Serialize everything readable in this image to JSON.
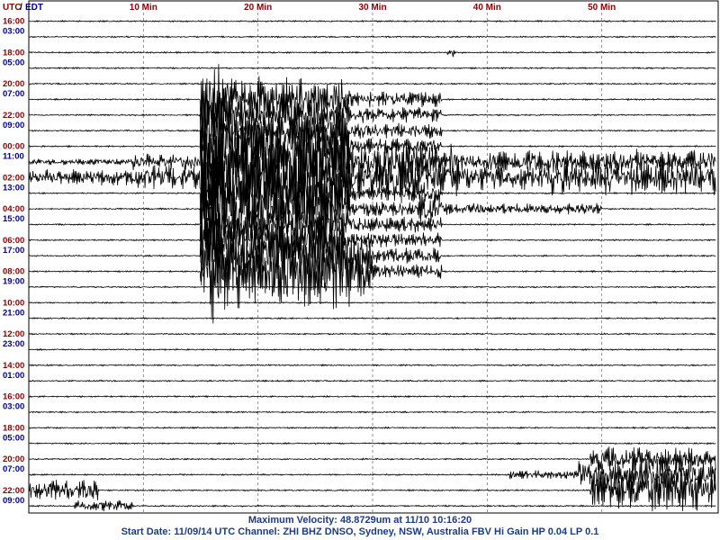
{
  "header": {
    "utc_label": "UTC",
    "separator": "/",
    "local_label": "EDT"
  },
  "colors": {
    "utc": "#8b0000",
    "local": "#00008b",
    "trace": "#000000",
    "gridline": "#777777",
    "footer_text": "#1a3a8a"
  },
  "footer": {
    "line1": "Maximum Velocity: 48.8729um at 11/10 10:16:20",
    "line2": "Start Date: 11/09/14 UTC Channel: ZHI  BHZ  DNSO, Sydney, NSW, Australia  FBV Hi Gain HP 0.04 LP 0.1"
  },
  "chart_data": {
    "type": "line",
    "title": "",
    "xlabel": "",
    "ylabel": "",
    "x_unit": "Min",
    "xlim": [
      0,
      60
    ],
    "x_ticks": [
      {
        "value": 10,
        "label": "10 Min"
      },
      {
        "value": 20,
        "label": "20 Min"
      },
      {
        "value": 30,
        "label": "30 Min"
      },
      {
        "value": 40,
        "label": "40 Min"
      },
      {
        "value": 50,
        "label": "50 Min"
      }
    ],
    "grid": true,
    "trace_lines": 32,
    "minutes_per_line": 60,
    "row_labels": [
      {
        "utc": "16:00",
        "local": "03:00"
      },
      {
        "utc": "18:00",
        "local": "05:00"
      },
      {
        "utc": "20:00",
        "local": "07:00"
      },
      {
        "utc": "22:00",
        "local": "09:00"
      },
      {
        "utc": "00:00",
        "local": "11:00"
      },
      {
        "utc": "02:00",
        "local": "13:00"
      },
      {
        "utc": "04:00",
        "local": "15:00"
      },
      {
        "utc": "06:00",
        "local": "17:00"
      },
      {
        "utc": "08:00",
        "local": "19:00"
      },
      {
        "utc": "10:00",
        "local": "21:00"
      },
      {
        "utc": "12:00",
        "local": "23:00"
      },
      {
        "utc": "14:00",
        "local": "01:00"
      },
      {
        "utc": "16:00",
        "local": "03:00"
      },
      {
        "utc": "18:00",
        "local": "05:00"
      },
      {
        "utc": "20:00",
        "local": "07:00"
      },
      {
        "utc": "22:00",
        "local": "09:00"
      }
    ],
    "maximum_velocity_um": 48.8729,
    "maximum_velocity_time": "11/10 10:16:20"
  }
}
